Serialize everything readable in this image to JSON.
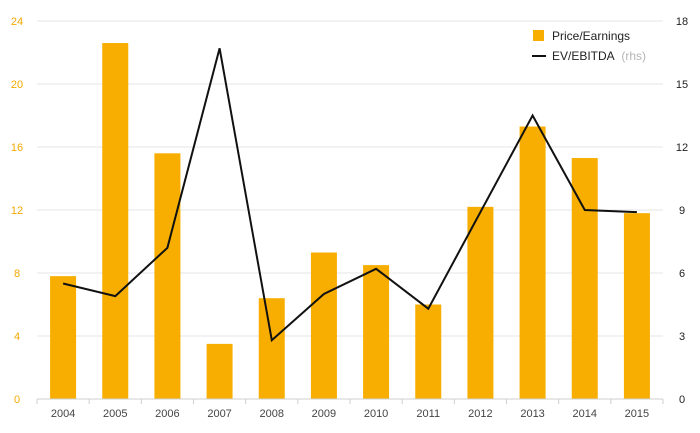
{
  "colors": {
    "bar": "#f7ae00",
    "line": "#111111",
    "left_axis_text": "#f5a800",
    "grid": "#e6e6e6"
  },
  "chart_data": {
    "type": "bar",
    "categories": [
      "2004",
      "2005",
      "2006",
      "2007",
      "2008",
      "2009",
      "2010",
      "2011",
      "2012",
      "2013",
      "2014",
      "2015"
    ],
    "series": [
      {
        "name": "Price/Earnings",
        "type": "bar",
        "axis": "left",
        "values": [
          7.8,
          22.6,
          15.6,
          3.5,
          6.4,
          9.3,
          8.5,
          6.0,
          12.2,
          17.3,
          15.3,
          11.8
        ]
      },
      {
        "name": "EV/EBITDA",
        "legend_note": "(rhs)",
        "type": "line",
        "axis": "right",
        "values": [
          5.5,
          4.9,
          7.2,
          16.7,
          2.8,
          5.0,
          6.2,
          4.3,
          8.9,
          13.5,
          9.0,
          8.9
        ]
      }
    ],
    "y_left": {
      "ylim": [
        0,
        24
      ],
      "ticks": [
        "0",
        "4",
        "8",
        "12",
        "16",
        "20",
        "24"
      ]
    },
    "y_right": {
      "ylim": [
        0,
        18
      ],
      "ticks": [
        "0",
        "3",
        "6",
        "9",
        "12",
        "15",
        "18"
      ]
    },
    "grid": true,
    "legend_position": "top-right"
  }
}
